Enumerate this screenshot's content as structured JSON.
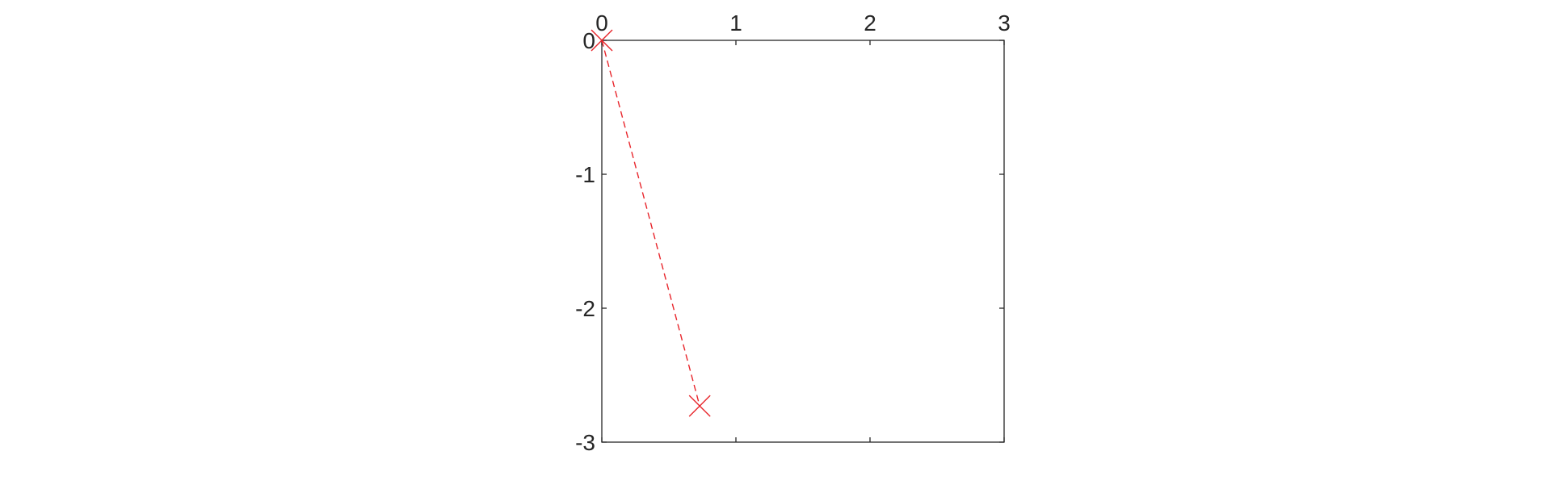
{
  "chart_data": {
    "type": "line",
    "title": "",
    "xlabel": "",
    "ylabel": "",
    "xlim": [
      0,
      3
    ],
    "ylim": [
      -3,
      0
    ],
    "x_ticks": [
      0,
      1,
      2,
      3
    ],
    "x_tick_labels": [
      "0",
      "1",
      "2",
      "3"
    ],
    "y_ticks": [
      0,
      -1,
      -2,
      -3
    ],
    "y_tick_labels": [
      "0",
      "-1",
      "-2",
      "-3"
    ],
    "x_axis_location": "top",
    "grid": false,
    "legend": "none",
    "series": [
      {
        "line_style": "dashed",
        "marker": "x",
        "color": "#e8252b",
        "x": [
          0,
          0.73
        ],
        "y": [
          0,
          -2.73
        ]
      }
    ]
  },
  "colors": {
    "axes": "#262626",
    "series": "#e8252b"
  }
}
